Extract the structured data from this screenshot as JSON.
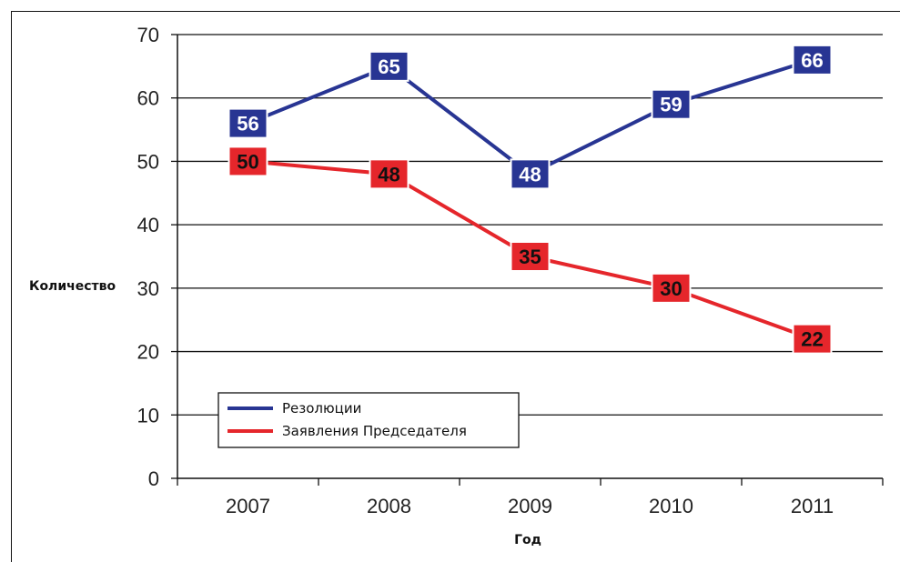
{
  "chart_data": {
    "type": "line",
    "title": "",
    "xlabel": "Год",
    "ylabel": "Количество",
    "categories": [
      "2007",
      "2008",
      "2009",
      "2010",
      "2011"
    ],
    "ylim": [
      0,
      70
    ],
    "yticks": [
      0,
      10,
      20,
      30,
      40,
      50,
      60,
      70
    ],
    "grid": true,
    "legend_position": "bottom-left",
    "series": [
      {
        "name": "Резолюции",
        "values": [
          56,
          65,
          48,
          59,
          66
        ],
        "color": "#283593",
        "label_text_color": "#ffffff"
      },
      {
        "name": "Заявления Председателя",
        "values": [
          50,
          48,
          35,
          30,
          22
        ],
        "color": "#e5262b",
        "label_text_color": "#111111"
      }
    ]
  }
}
